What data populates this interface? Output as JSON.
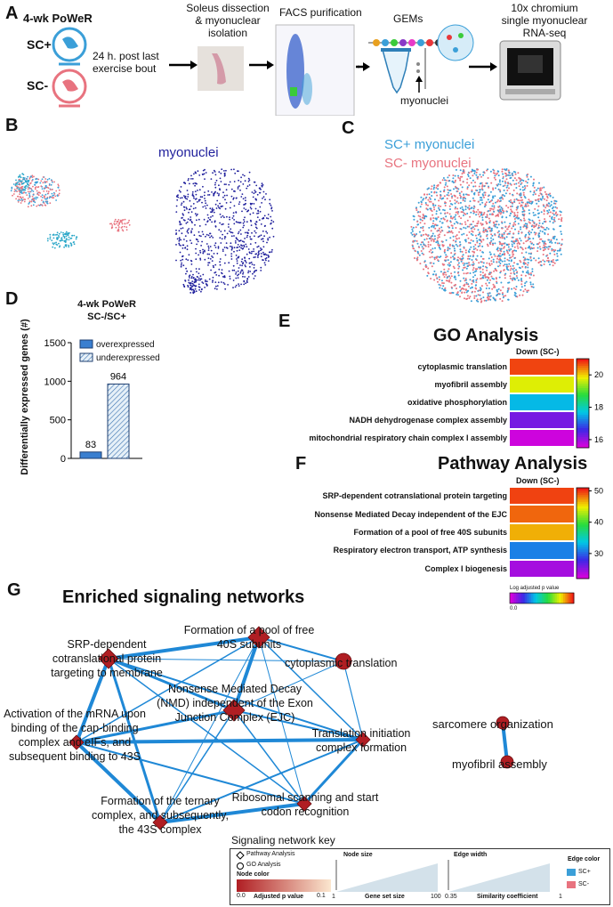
{
  "panels": {
    "a": "A",
    "b": "B",
    "c": "C",
    "d": "D",
    "e": "E",
    "f": "F",
    "g": "G"
  },
  "colors": {
    "sc_plus": "#3b9fd8",
    "sc_minus": "#e8737f",
    "myonuclei": "#1f1f9c",
    "node": "#b01e23",
    "edge": "#1f88d6"
  },
  "panel_a": {
    "title": "4-wk PoWeR",
    "sc_plus": "SC+",
    "sc_minus": "SC-",
    "timing": "24 h. post last exercise bout",
    "step1": "Soleus dissection & myonuclear isolation",
    "step2": "FACS purification",
    "step3": "GEMs",
    "step3_sub": "myonuclei",
    "step4": "10x chromium single myonuclear RNA-seq"
  },
  "panel_b": {
    "label": "myonuclei"
  },
  "panel_c": {
    "label_plus": "SC+ myonuclei",
    "label_minus": "SC- myonuclei"
  },
  "panel_d": {
    "title_line1": "4-wk PoWeR",
    "title_line2": "SC-/SC+",
    "legend_over": "overexpressed",
    "legend_under": "underexpressed"
  },
  "chart_data": [
    {
      "type": "bar",
      "title": "4-wk PoWeR SC-/SC+",
      "ylabel": "Differentially expressed genes (#)",
      "categories": [
        "overexpressed",
        "underexpressed"
      ],
      "values": [
        83,
        964
      ],
      "ylim": [
        0,
        1500
      ],
      "yticks": [
        0,
        500,
        1000,
        1500
      ]
    },
    {
      "type": "heatmap",
      "title": "GO Analysis",
      "column": "Down (SC-)",
      "rows": [
        "cytoplasmic translation",
        "myofibril assembly",
        "oxidative phosphorylation",
        "NADH dehydrogenase complex assembly",
        "mitochondrial respiratory chain complex I assembly"
      ],
      "values": [
        20.8,
        19.8,
        17.6,
        16.2,
        15.6
      ],
      "scale": [
        15.5,
        21
      ],
      "scale_ticks": [
        16,
        18,
        20
      ]
    },
    {
      "type": "heatmap",
      "title": "Pathway Analysis",
      "column": "Down (SC-)",
      "rows": [
        "SRP-dependent cotranslational protein targeting",
        "Nonsense Mediated Decay independent of the EJC",
        "Formation of a pool of free 40S subunits",
        "Respiratory electron transport, ATP synthesis",
        "Complex I biogenesis"
      ],
      "values": [
        50,
        49,
        47,
        31,
        24
      ],
      "scale": [
        22,
        51
      ],
      "scale_ticks": [
        30,
        40,
        50
      ],
      "scale_caption": "Log adjusted p value",
      "scale_min_label": "0.0"
    }
  ],
  "panel_g": {
    "title": "Enriched signaling networks",
    "nodes": [
      "SRP-dependent cotranslational protein targeting to membrane",
      "Formation of a pool of free 40S subunits",
      "cytoplasmic translation",
      "Nonsense Mediated Decay (NMD) independent of the Exon Junction Complex (EJC)",
      "Activation of the mRNA upon binding of the cap-binding complex and eIFs, and subsequent binding to 43S",
      "Translation initiation complex formation",
      "Ribosomal scanning and start codon recognition",
      "Formation of the ternary complex, and subsequently, the 43S complex",
      "sarcomere organization",
      "myofibril assembly"
    ],
    "key": {
      "title": "Signaling network key",
      "pathway": "Pathway Analysis",
      "go": "GO Analysis",
      "node_color": "Node color",
      "node_color_min": "0.0",
      "node_color_label": "Adjusted p value",
      "node_color_max": "0.1",
      "node_size": "Node size",
      "node_size_min": "1",
      "node_size_label": "Gene set size",
      "node_size_max": "100",
      "edge_width": "Edge width",
      "edge_width_min": "0.35",
      "edge_width_label": "Similarity coefficient",
      "edge_width_max": "1",
      "edge_color": "Edge color",
      "edge_plus": "SC+",
      "edge_minus": "SC-"
    }
  }
}
